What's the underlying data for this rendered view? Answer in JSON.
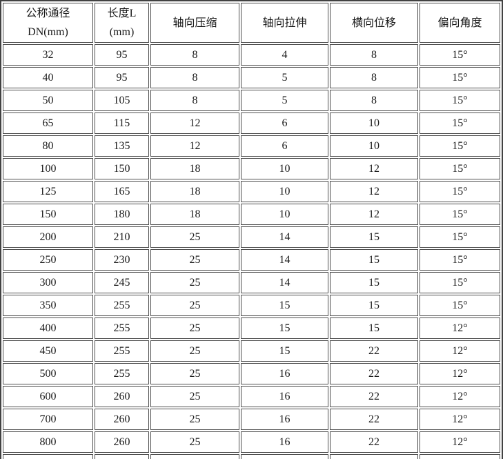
{
  "page": {
    "background_color": "#ffffff",
    "border_color": "#4d4d4d",
    "text_color": "#1a1a1a"
  },
  "table": {
    "headers": [
      "公称通径\nDN(mm)",
      "长度L\n(mm)",
      "轴向压缩",
      "轴向拉伸",
      "横向位移",
      "偏向角度"
    ],
    "rows": [
      [
        "32",
        "95",
        "8",
        "4",
        "8",
        "15°"
      ],
      [
        "40",
        "95",
        "8",
        "5",
        "8",
        "15°"
      ],
      [
        "50",
        "105",
        "8",
        "5",
        "8",
        "15°"
      ],
      [
        "65",
        "115",
        "12",
        "6",
        "10",
        "15°"
      ],
      [
        "80",
        "135",
        "12",
        "6",
        "10",
        "15°"
      ],
      [
        "100",
        "150",
        "18",
        "10",
        "12",
        "15°"
      ],
      [
        "125",
        "165",
        "18",
        "10",
        "12",
        "15°"
      ],
      [
        "150",
        "180",
        "18",
        "10",
        "12",
        "15°"
      ],
      [
        "200",
        "210",
        "25",
        "14",
        "15",
        "15°"
      ],
      [
        "250",
        "230",
        "25",
        "14",
        "15",
        "15°"
      ],
      [
        "300",
        "245",
        "25",
        "14",
        "15",
        "15°"
      ],
      [
        "350",
        "255",
        "25",
        "15",
        "15",
        "15°"
      ],
      [
        "400",
        "255",
        "25",
        "15",
        "15",
        "12°"
      ],
      [
        "450",
        "255",
        "25",
        "15",
        "22",
        "12°"
      ],
      [
        "500",
        "255",
        "25",
        "16",
        "22",
        "12°"
      ],
      [
        "600",
        "260",
        "25",
        "16",
        "22",
        "12°"
      ],
      [
        "700",
        "260",
        "25",
        "16",
        "22",
        "12°"
      ],
      [
        "800",
        "260",
        "25",
        "16",
        "22",
        "12°"
      ]
    ],
    "partial_bottom_row": [
      "",
      "",
      "",
      "",
      "",
      ""
    ]
  }
}
